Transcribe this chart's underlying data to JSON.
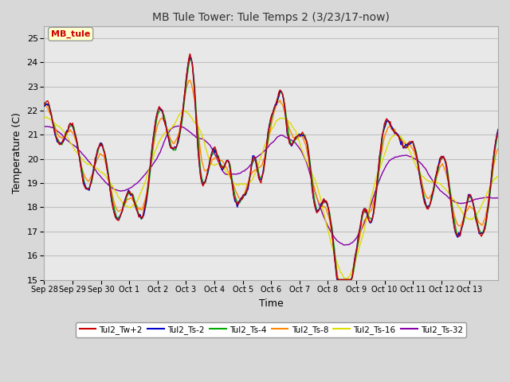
{
  "title": "MB Tule Tower: Tule Temps 2 (3/23/17-now)",
  "xlabel": "Time",
  "ylabel": "Temperature (C)",
  "ylim": [
    15.0,
    25.5
  ],
  "yticks": [
    15.0,
    16.0,
    17.0,
    18.0,
    19.0,
    20.0,
    21.0,
    22.0,
    23.0,
    24.0,
    25.0
  ],
  "xtick_labels": [
    "Sep 28",
    "Sep 29",
    "Sep 30",
    "Oct 1",
    "Oct 2",
    "Oct 3",
    "Oct 4",
    "Oct 5",
    "Oct 6",
    "Oct 7",
    "Oct 8",
    "Oct 9",
    "Oct 10",
    "Oct 11",
    "Oct 12",
    "Oct 13"
  ],
  "legend_label": "MB_tule",
  "series_names": [
    "Tul2_Tw+2",
    "Tul2_Ts-2",
    "Tul2_Ts-4",
    "Tul2_Ts-8",
    "Tul2_Ts-16",
    "Tul2_Ts-32"
  ],
  "series_colors": [
    "#cc0000",
    "#0000cc",
    "#00aa00",
    "#ff8800",
    "#dddd00",
    "#8800aa"
  ],
  "background_color": "#d8d8d8",
  "plot_bg_color": "#e8e8e8",
  "grid_color": "#c0c0c0"
}
